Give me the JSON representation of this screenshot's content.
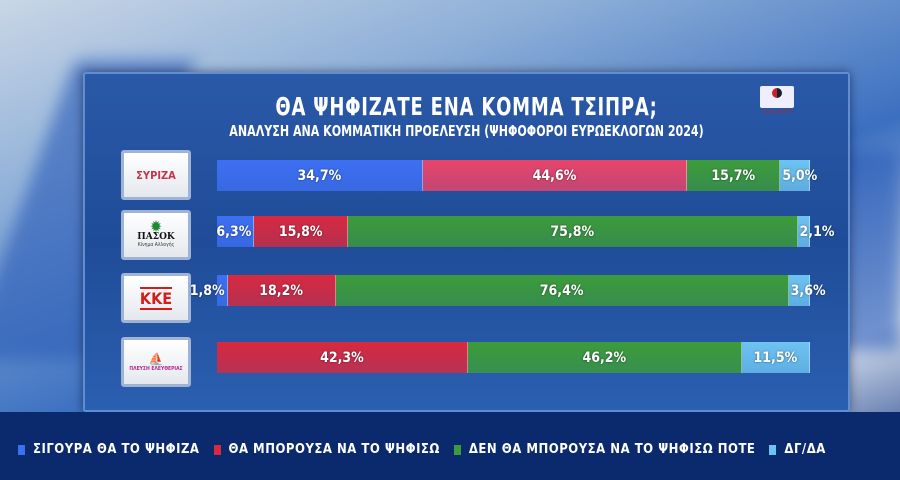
{
  "chart_data": {
    "type": "bar",
    "stacked": true,
    "orientation": "horizontal",
    "title": "ΘΑ ΨΗΦΙΖΑΤΕ ΕΝΑ ΚΟΜΜΑ ΤΣΙΠΡΑ;",
    "subtitle": "ΑΝΑΛΥΣΗ ΑΝΑ ΚΟΜΜΑΤΙΚΗ ΠΡΟΕΛΕΥΣΗ (ΨΗΦΟΦΟΡΟΙ ΕΥΡΩΕΚΛΟΓΩΝ 2024)",
    "categories": [
      "ΣΥΡΙΖΑ",
      "ΠΑΣΟΚ",
      "ΚΚΕ",
      "ΠΛΕΥΣΗ ΕΛΕΥΘΕΡΙΑΣ"
    ],
    "series": [
      {
        "name": "ΣΙΓΟΥΡΑ ΘΑ ΤΟ ΨΗΦΙΖΑ",
        "color": "#3d6ff2",
        "values": [
          34.7,
          6.3,
          1.8,
          0
        ],
        "labels": [
          "34,7%",
          "6,3%",
          "1,8%",
          ""
        ]
      },
      {
        "name": "ΘΑ ΜΠΟΡΟΥΣΑ ΝΑ ΤΟ ΨΗΦΙΣΩ",
        "color": "#d8293f",
        "values": [
          44.6,
          15.8,
          18.2,
          42.3
        ],
        "labels": [
          "44,6%",
          "15,8%",
          "18,2%",
          "42,3%"
        ]
      },
      {
        "name": "ΔΕΝ ΘΑ ΜΠΟΡΟΥΣΑ ΝΑ ΤΟ ΨΗΦΙΣΩ ΠΟΤΕ",
        "color": "#3c9c3a",
        "values": [
          15.7,
          75.8,
          76.4,
          46.2
        ],
        "labels": [
          "15,7%",
          "75,8%",
          "76,4%",
          "46,2%"
        ]
      },
      {
        "name": "ΔΓ/ΔΑ",
        "color": "#6dc3f2",
        "values": [
          5.0,
          2.1,
          3.6,
          11.5
        ],
        "labels": [
          "5,0%",
          "2,1%",
          "3,6%",
          "11,5%"
        ]
      }
    ],
    "legend": "bottom"
  },
  "source_logo": "OpinionPoll",
  "party_logos": [
    "ΣΥΡΙΖΑ",
    "ΠΑΣΟΚ",
    "Κίνημα Αλλαγής",
    "ΚΚΕ",
    "ΠΛΕΥΣΗ ΕΛΕΥΘΕΡΙΑΣ"
  ]
}
